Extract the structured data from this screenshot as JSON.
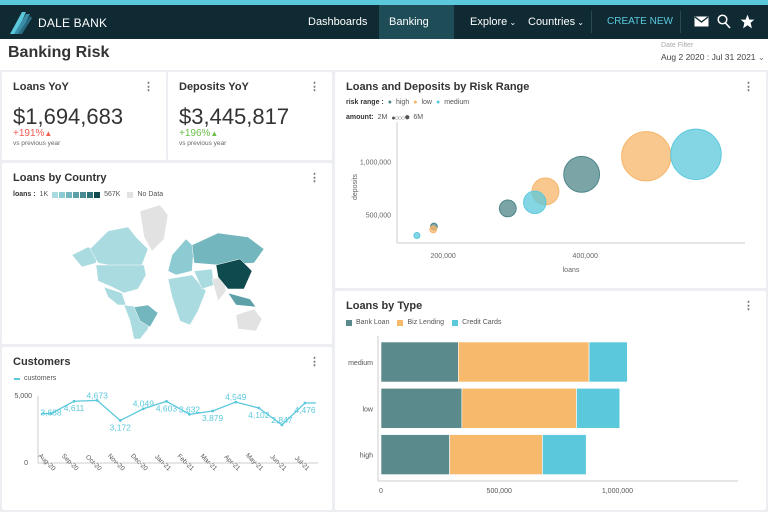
{
  "nav": {
    "brand": "DALE BANK",
    "items": [
      {
        "label": "Dashboards"
      },
      {
        "label": "Banking risk",
        "active": true
      },
      {
        "label": "Explore",
        "dropdown": true
      },
      {
        "label": "Countries",
        "dropdown": true
      }
    ],
    "create_label": "CREATE NEW",
    "icons": [
      "mail-icon",
      "search-icon",
      "star-icon"
    ]
  },
  "page": {
    "title": "Banking Risk",
    "date_filter_label": "Date Filter",
    "date_filter_value": "Aug 2 2020 : Jul 31 2021"
  },
  "loans_yoy": {
    "title": "Loans YoY",
    "value": "$1,694,683",
    "change": "+191%",
    "direction": "up",
    "change_color": "#f25c54",
    "caption": "vs previous year"
  },
  "deposits_yoy": {
    "title": "Deposits YoY",
    "value": "$3,445,817",
    "change": "+196%",
    "direction": "up",
    "change_color": "#6cc04a",
    "caption": "vs previous year"
  },
  "loans_by_country": {
    "title": "Loans by Country",
    "legend_label": "loans :",
    "min": "1K",
    "max": "567K",
    "no_data": "No Data",
    "scale_colors": [
      "#a9dbe0",
      "#8ccbd1",
      "#74b6bd",
      "#5ea0a8",
      "#478a92",
      "#2f727a",
      "#0f4a4f"
    ]
  },
  "chart_data": [
    {
      "type": "scatter",
      "title": "Loans and Deposits by Risk Range",
      "xlabel": "loans",
      "ylabel": "deposits",
      "legend_label": "risk range :",
      "size_label": "amount:",
      "size_min": "2M",
      "size_max": "6M",
      "x_ticks": [
        "200,000",
        "400,000"
      ],
      "y_ticks": [
        "500,000",
        "1,000,000"
      ],
      "xlim": [
        135000,
        625000
      ],
      "ylim": [
        240000,
        1380000
      ],
      "series": [
        {
          "name": "high",
          "color": "#4f8689",
          "points": [
            {
              "x": 187000,
              "y": 396000,
              "size": 2.1
            },
            {
              "x": 291000,
              "y": 566000,
              "size": 3.0
            },
            {
              "x": 395000,
              "y": 887000,
              "size": 4.7
            }
          ]
        },
        {
          "name": "low",
          "color": "#f7b56a",
          "points": [
            {
              "x": 186000,
              "y": 368000,
              "size": 2.1
            },
            {
              "x": 344000,
              "y": 726000,
              "size": 3.9
            },
            {
              "x": 486000,
              "y": 1057000,
              "size": 5.9
            }
          ]
        },
        {
          "name": "medium",
          "color": "#5bc8dc",
          "points": [
            {
              "x": 163000,
              "y": 311000,
              "size": 1.8
            },
            {
              "x": 329000,
              "y": 623000,
              "size": 3.5
            },
            {
              "x": 556000,
              "y": 1075000,
              "size": 6.0
            }
          ]
        }
      ]
    },
    {
      "type": "line",
      "title": "Customers",
      "legend": "customers",
      "color": "#5bc8dc",
      "ylim": [
        0,
        5000
      ],
      "y_ticks": [
        "0",
        "5,000"
      ],
      "categories": [
        "Aug-20",
        "Sep-20",
        "Oct-20",
        "Nov-20",
        "Dec-20",
        "Jan-21",
        "Feb-21",
        "Mar-21",
        "Apr-21",
        "May-21",
        "Jun-21",
        "Jul-21"
      ],
      "values": [
        3688,
        4611,
        4673,
        3172,
        4049,
        4603,
        3632,
        3879,
        4549,
        4102,
        2847,
        4476
      ],
      "labels": [
        "3,688",
        "4,611",
        "4,673",
        "3,172",
        "4,049",
        "4,603",
        "3,632",
        "3,879",
        "4,549",
        "4,102",
        "2,847",
        "4,476"
      ]
    },
    {
      "type": "bar",
      "orientation": "horizontal",
      "stacked": true,
      "title": "Loans by Type",
      "categories": [
        "medium",
        "low",
        "high"
      ],
      "xlim": [
        0,
        1510000
      ],
      "x_ticks": [
        "0",
        "500,000",
        "1,000,000"
      ],
      "series": [
        {
          "name": "Bank Loan",
          "color": "#5a8a8c",
          "values": [
            327000,
            342000,
            290000
          ]
        },
        {
          "name": "Biz Lending",
          "color": "#f7b96c",
          "values": [
            553000,
            485000,
            393000
          ]
        },
        {
          "name": "Credit Cards",
          "color": "#5bc8dc",
          "values": [
            162000,
            183000,
            185000
          ]
        }
      ]
    }
  ]
}
